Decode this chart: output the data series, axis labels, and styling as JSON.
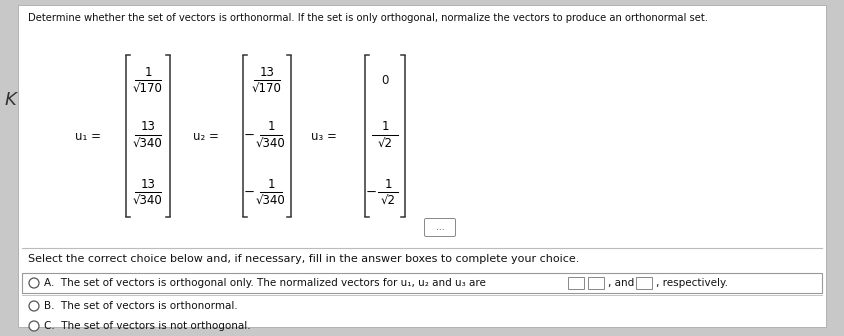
{
  "title": "Determine whether the set of vectors is orthonormal. If the set is only orthogonal, normalize the vectors to produce an orthonormal set.",
  "background_color": "#c8c8c8",
  "content_bg": "white",
  "u1_label": "u₁ =",
  "u2_label": "u₂ =",
  "u3_label": "u₃ =",
  "ellipsis": "...",
  "question_text": "Select the correct choice below and, if necessary, fill in the answer boxes to complete your choice.",
  "choice_A_text": "A.  The set of vectors is orthogonal only. The normalized vectors for u₁, u₂ and u₃ are",
  "choice_B_text": "B.  The set of vectors is orthonormal.",
  "choice_C_text": "C.  The set of vectors is not orthogonal.",
  "text_color": "#111111",
  "gray_text": "#555555",
  "title_fontsize": 7.2,
  "body_fontsize": 8.0,
  "math_fontsize": 8.5,
  "bracket_color": "#333333",
  "separator_color": "#bbbbbb"
}
